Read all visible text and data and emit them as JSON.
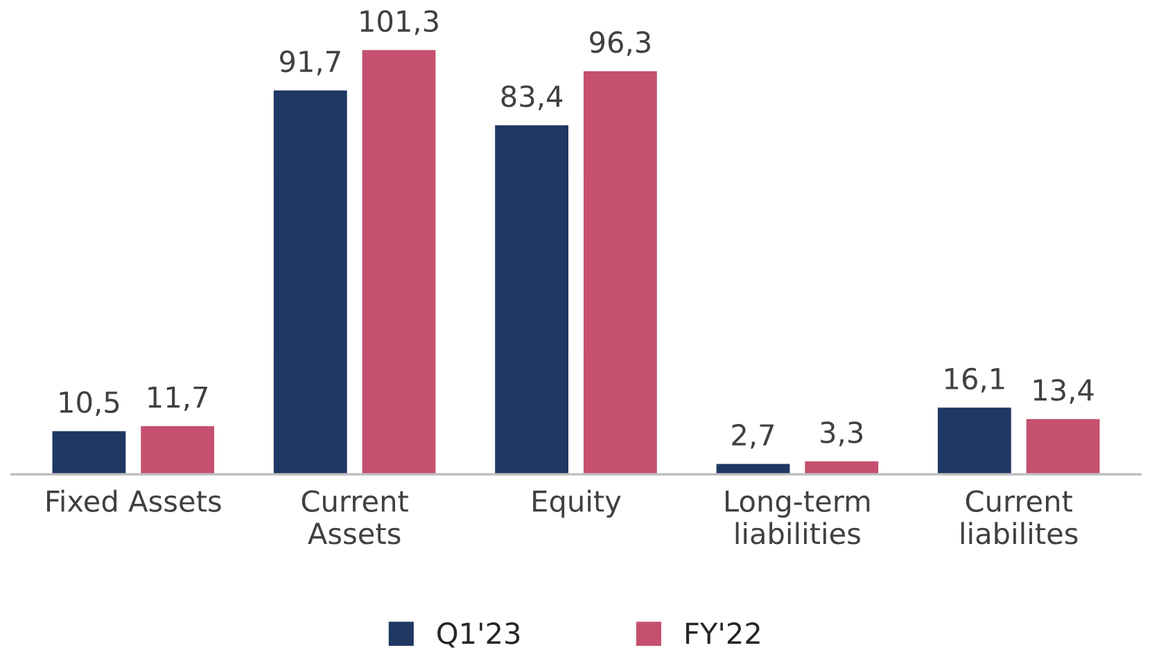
{
  "chart_data": {
    "type": "bar",
    "categories": [
      "Fixed Assets",
      "Current\nAssets",
      "Equity",
      "Long-term\nliabilities",
      "Current\nliabilites"
    ],
    "series": [
      {
        "name": "Q1'23",
        "color": "#1f3864",
        "values": [
          10.5,
          91.7,
          83.4,
          2.7,
          16.1
        ],
        "value_labels": [
          "10,5",
          "91,7",
          "83,4",
          "2,7",
          "16,1"
        ]
      },
      {
        "name": "FY'22",
        "color": "#c5506f",
        "values": [
          11.7,
          101.3,
          96.3,
          3.3,
          13.4
        ],
        "value_labels": [
          "11,7",
          "101,3",
          "96,3",
          "3,3",
          "13,4"
        ]
      }
    ],
    "legend": "bottom",
    "grid": false
  }
}
